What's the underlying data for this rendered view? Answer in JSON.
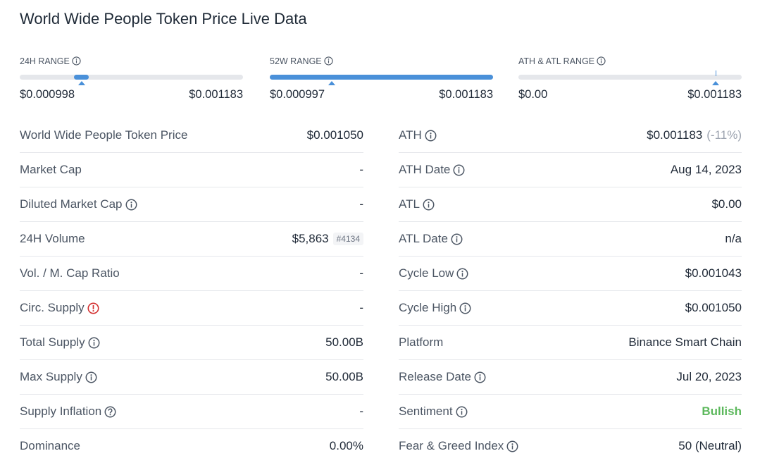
{
  "header": {
    "title": "World Wide People Token Price Live Data"
  },
  "ranges": [
    {
      "label": "24H RANGE",
      "low": "$0.000998",
      "high": "$0.001183"
    },
    {
      "label": "52W RANGE",
      "low": "$0.000997",
      "high": "$0.001183"
    },
    {
      "label": "ATH & ATL RANGE",
      "low": "$0.00",
      "high": "$0.001183"
    }
  ],
  "left": [
    {
      "label": "World Wide People Token Price",
      "value": "$0.001050"
    },
    {
      "label": "Market Cap",
      "value": "-"
    },
    {
      "label": "Diluted Market Cap",
      "value": "-"
    },
    {
      "label": "24H Volume",
      "value": "$5,863",
      "rank": "#4134"
    },
    {
      "label": "Vol. / M. Cap Ratio",
      "value": "-"
    },
    {
      "label": "Circ. Supply",
      "value": "-"
    },
    {
      "label": "Total Supply",
      "value": "50.00B"
    },
    {
      "label": "Max Supply",
      "value": "50.00B"
    },
    {
      "label": "Supply Inflation",
      "value": "-"
    },
    {
      "label": "Dominance",
      "value": "0.00%"
    }
  ],
  "right": [
    {
      "label": "ATH",
      "value": "$0.001183",
      "change": "(-11%)"
    },
    {
      "label": "ATH Date",
      "value": "Aug 14, 2023"
    },
    {
      "label": "ATL",
      "value": "$0.00"
    },
    {
      "label": "ATL Date",
      "value": "n/a"
    },
    {
      "label": "Cycle Low",
      "value": "$0.001043"
    },
    {
      "label": "Cycle High",
      "value": "$0.001050"
    },
    {
      "label": "Platform",
      "value": "Binance Smart Chain"
    },
    {
      "label": "Release Date",
      "value": "Jul 20, 2023"
    },
    {
      "label": "Sentiment",
      "value": "Bullish"
    },
    {
      "label": "Fear & Greed Index",
      "value": "50 (Neutral)"
    }
  ]
}
